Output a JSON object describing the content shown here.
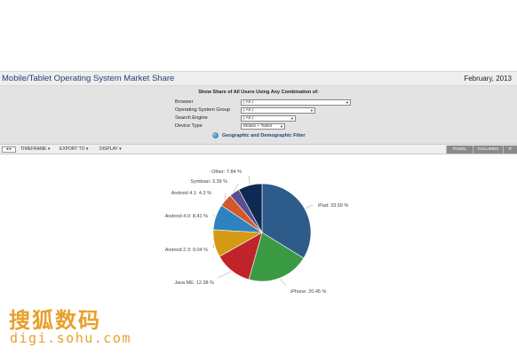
{
  "header": {
    "title": "Mobile/Tablet Operating System Market Share",
    "date": "February, 2013"
  },
  "filters": {
    "heading": "Show Share of All Users Using Any Combination of:",
    "rows": [
      {
        "label": "Browser",
        "value": "( All )"
      },
      {
        "label": "Operating System Group",
        "value": "( All )"
      },
      {
        "label": "Search Engine",
        "value": "( All )"
      },
      {
        "label": "Device Type",
        "value": "Mobile + Tablet"
      }
    ],
    "geo_link": "Geographic and Demographic Filter"
  },
  "toolbar": {
    "nav": "◂ ▸",
    "timeframe": "TIMEFRAME",
    "export": "EXPORT TO",
    "display": "DISPLAY",
    "caret": "▾",
    "buttons": [
      "PANEL",
      "COLUMNS",
      "IF"
    ]
  },
  "chart_data": {
    "type": "pie",
    "title": "",
    "slices": [
      {
        "label": "iPad: 33.59 %",
        "value": 33.59,
        "color": "#2e5c8a"
      },
      {
        "label": "iPhone: 20.45 %",
        "value": 20.45,
        "color": "#3a9a44"
      },
      {
        "label": "Java ME: 12.38 %",
        "value": 12.38,
        "color": "#c0232a"
      },
      {
        "label": "Android 2.3: 9.04 %",
        "value": 9.04,
        "color": "#d59a14"
      },
      {
        "label": "Android 4.0: 8.41 %",
        "value": 8.41,
        "color": "#2f82c0"
      },
      {
        "label": "Android 4.1: 4.3 %",
        "value": 4.3,
        "color": "#d2592a"
      },
      {
        "label": "Symbian: 3.39 %",
        "value": 3.39,
        "color": "#5b4f94"
      },
      {
        "label": "Other: 7.84 %",
        "value": 7.84,
        "color": "#0f2a52"
      }
    ]
  },
  "watermark": {
    "text": "搜狐数码",
    "url": "digi.sohu.com"
  }
}
